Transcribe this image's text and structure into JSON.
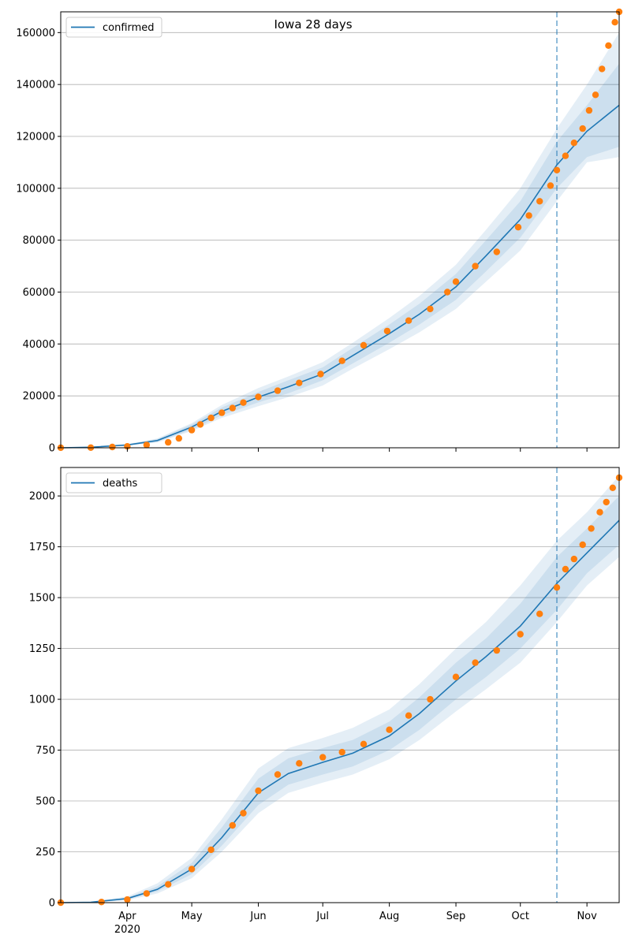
{
  "figure_title": "Iowa 28 days",
  "colors": {
    "model_line": "#1f77b4",
    "band": "#1f77b4",
    "observed": "#ff7f0e",
    "vline": "#1f77b4",
    "grid": "#b0b0b0"
  },
  "x_axis": {
    "date_start": "2020-03-01",
    "date_end": "2020-11-16",
    "ticks": [
      {
        "date": "2020-04-01",
        "label": "Apr",
        "sub": "2020"
      },
      {
        "date": "2020-05-01",
        "label": "May",
        "sub": ""
      },
      {
        "date": "2020-06-01",
        "label": "Jun",
        "sub": ""
      },
      {
        "date": "2020-07-01",
        "label": "Jul",
        "sub": ""
      },
      {
        "date": "2020-08-01",
        "label": "Aug",
        "sub": ""
      },
      {
        "date": "2020-09-01",
        "label": "Sep",
        "sub": ""
      },
      {
        "date": "2020-10-01",
        "label": "Oct",
        "sub": ""
      },
      {
        "date": "2020-11-01",
        "label": "Nov",
        "sub": ""
      }
    ]
  },
  "chart_data": [
    {
      "type": "line",
      "legend": "confirmed",
      "legend_position": "upper-left",
      "grid": "horizontal",
      "ylim": [
        0,
        168000
      ],
      "yticks": [
        0,
        20000,
        40000,
        60000,
        80000,
        100000,
        120000,
        140000,
        160000
      ],
      "forecast_start": "2020-10-18",
      "model": {
        "x": [
          "2020-03-01",
          "2020-03-15",
          "2020-04-01",
          "2020-04-15",
          "2020-05-01",
          "2020-05-15",
          "2020-06-01",
          "2020-06-15",
          "2020-07-01",
          "2020-07-15",
          "2020-08-01",
          "2020-08-15",
          "2020-09-01",
          "2020-09-15",
          "2020-10-01",
          "2020-10-18",
          "2020-11-01",
          "2020-11-16"
        ],
        "y": [
          0,
          200,
          1100,
          2800,
          8000,
          14000,
          19500,
          23500,
          28500,
          35500,
          44000,
          51500,
          62000,
          74000,
          88000,
          109000,
          122000,
          132000
        ],
        "bands": [
          {
            "lo": [
              0,
              100,
              900,
              2300,
              7000,
              12500,
              17500,
              21000,
              26000,
              32500,
              40500,
              47500,
              57000,
              68000,
              81000,
              100000,
              112000,
              116000
            ],
            "hi": [
              0,
              300,
              1300,
              3300,
              9000,
              15500,
              21500,
              26000,
              31000,
              38500,
              47500,
              55500,
              67000,
              80000,
              95000,
              118000,
              132000,
              148000
            ]
          },
          {
            "lo": [
              0,
              50,
              800,
              2000,
              6500,
              11500,
              16000,
              19500,
              24000,
              30500,
              38000,
              44500,
              53500,
              64000,
              76000,
              95000,
              110000,
              112000
            ],
            "hi": [
              0,
              350,
              1400,
              3600,
              9500,
              16500,
              23000,
              27500,
              33000,
              40500,
              50000,
              58500,
              70500,
              84000,
              100000,
              123000,
              140000,
              160000
            ]
          }
        ]
      },
      "observed": {
        "x": [
          "2020-03-01",
          "2020-03-15",
          "2020-03-25",
          "2020-04-01",
          "2020-04-10",
          "2020-04-20",
          "2020-04-25",
          "2020-05-01",
          "2020-05-05",
          "2020-05-10",
          "2020-05-15",
          "2020-05-20",
          "2020-05-25",
          "2020-06-01",
          "2020-06-10",
          "2020-06-20",
          "2020-06-30",
          "2020-07-10",
          "2020-07-20",
          "2020-07-31",
          "2020-08-10",
          "2020-08-20",
          "2020-08-28",
          "2020-09-01",
          "2020-09-10",
          "2020-09-20",
          "2020-09-30",
          "2020-10-05",
          "2020-10-10",
          "2020-10-15",
          "2020-10-18",
          "2020-10-22",
          "2020-10-26",
          "2020-10-30",
          "2020-11-02",
          "2020-11-05",
          "2020-11-08",
          "2020-11-11",
          "2020-11-14",
          "2020-11-16"
        ],
        "y": [
          20,
          60,
          300,
          550,
          1100,
          2100,
          3600,
          6800,
          9000,
          11500,
          13500,
          15300,
          17400,
          19600,
          22000,
          25000,
          28400,
          33500,
          39500,
          45000,
          49000,
          53500,
          60000,
          64000,
          70000,
          75500,
          85000,
          89500,
          95000,
          101000,
          107000,
          112500,
          117500,
          123000,
          130000,
          136000,
          146000,
          155000,
          164000,
          168000
        ]
      }
    },
    {
      "type": "line",
      "legend": "deaths",
      "legend_position": "upper-left",
      "grid": "horizontal",
      "ylim": [
        0,
        2140
      ],
      "yticks": [
        0,
        250,
        500,
        750,
        1000,
        1250,
        1500,
        1750,
        2000
      ],
      "forecast_start": "2020-10-18",
      "model": {
        "x": [
          "2020-03-01",
          "2020-03-15",
          "2020-04-01",
          "2020-04-15",
          "2020-05-01",
          "2020-05-15",
          "2020-06-01",
          "2020-06-15",
          "2020-07-01",
          "2020-07-15",
          "2020-08-01",
          "2020-08-15",
          "2020-09-01",
          "2020-09-15",
          "2020-10-01",
          "2020-10-18",
          "2020-11-01",
          "2020-11-16"
        ],
        "y": [
          0,
          2,
          20,
          65,
          165,
          320,
          540,
          635,
          690,
          735,
          820,
          930,
          1090,
          1210,
          1360,
          1570,
          1720,
          1880
        ],
        "bands": [
          {
            "lo": [
              0,
              1,
              15,
              55,
              140,
              280,
              480,
              580,
              630,
              670,
              750,
              850,
              1000,
              1110,
              1250,
              1440,
              1620,
              1760
            ],
            "hi": [
              0,
              3,
              25,
              80,
              195,
              370,
              610,
              710,
              760,
              800,
              890,
              1010,
              1180,
              1300,
              1470,
              1700,
              1840,
              2000
            ]
          },
          {
            "lo": [
              0,
              0,
              12,
              45,
              120,
              250,
              440,
              540,
              590,
              630,
              705,
              800,
              940,
              1050,
              1180,
              1380,
              1560,
              1700
            ],
            "hi": [
              0,
              5,
              30,
              95,
              220,
              410,
              660,
              760,
              810,
              860,
              950,
              1075,
              1250,
              1380,
              1560,
              1780,
              1920,
              2100
            ]
          }
        ]
      },
      "observed": {
        "x": [
          "2020-03-01",
          "2020-03-20",
          "2020-04-01",
          "2020-04-10",
          "2020-04-20",
          "2020-05-01",
          "2020-05-10",
          "2020-05-20",
          "2020-05-25",
          "2020-06-01",
          "2020-06-10",
          "2020-06-20",
          "2020-07-01",
          "2020-07-10",
          "2020-07-20",
          "2020-08-01",
          "2020-08-10",
          "2020-08-20",
          "2020-09-01",
          "2020-09-10",
          "2020-09-20",
          "2020-10-01",
          "2020-10-10",
          "2020-10-18",
          "2020-10-22",
          "2020-10-26",
          "2020-10-30",
          "2020-11-03",
          "2020-11-07",
          "2020-11-10",
          "2020-11-13",
          "2020-11-16"
        ],
        "y": [
          0,
          3,
          15,
          45,
          90,
          165,
          260,
          380,
          440,
          550,
          630,
          685,
          715,
          740,
          780,
          850,
          920,
          1000,
          1110,
          1180,
          1240,
          1320,
          1420,
          1550,
          1640,
          1690,
          1760,
          1840,
          1920,
          1970,
          2040,
          2090
        ]
      }
    }
  ]
}
